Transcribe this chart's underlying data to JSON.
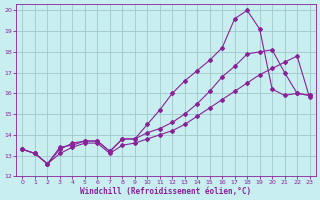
{
  "xlabel": "Windchill (Refroidissement éolien,°C)",
  "bg_color": "#c8eef0",
  "grid_color": "#a0c8cc",
  "line_color": "#882299",
  "spine_color": "#882299",
  "xlim": [
    -0.5,
    23.5
  ],
  "ylim": [
    12,
    20.3
  ],
  "xticks": [
    0,
    1,
    2,
    3,
    4,
    5,
    6,
    7,
    8,
    9,
    10,
    11,
    12,
    13,
    14,
    15,
    16,
    17,
    18,
    19,
    20,
    21,
    22,
    23
  ],
  "yticks": [
    12,
    13,
    14,
    15,
    16,
    17,
    18,
    19,
    20
  ],
  "line1_x": [
    0,
    1,
    2,
    3,
    4,
    5,
    6,
    7,
    8,
    9,
    10,
    11,
    12,
    13,
    14,
    15,
    16,
    17,
    18,
    19,
    20,
    21,
    22,
    23
  ],
  "line1_y": [
    13.3,
    13.1,
    12.6,
    13.4,
    13.5,
    13.7,
    13.7,
    13.2,
    13.8,
    13.8,
    14.1,
    14.3,
    14.6,
    15.0,
    15.5,
    16.1,
    16.8,
    17.3,
    17.9,
    18.0,
    18.1,
    17.0,
    16.0,
    15.9
  ],
  "line2_x": [
    0,
    1,
    2,
    3,
    4,
    5,
    6,
    7,
    8,
    9,
    10,
    11,
    12,
    13,
    14,
    15,
    16,
    17,
    18,
    19,
    20,
    21,
    22,
    23
  ],
  "line2_y": [
    13.3,
    13.1,
    12.6,
    13.3,
    13.6,
    13.7,
    13.7,
    13.2,
    13.8,
    13.8,
    14.5,
    15.2,
    16.0,
    16.6,
    17.1,
    17.6,
    18.2,
    19.6,
    20.0,
    19.1,
    16.2,
    15.9,
    16.0,
    15.9
  ],
  "line3_x": [
    0,
    1,
    2,
    3,
    4,
    5,
    6,
    7,
    8,
    9,
    10,
    11,
    12,
    13,
    14,
    15,
    16,
    17,
    18,
    19,
    20,
    21,
    22,
    23
  ],
  "line3_y": [
    13.3,
    13.1,
    12.6,
    13.1,
    13.4,
    13.6,
    13.6,
    13.1,
    13.5,
    13.6,
    13.8,
    14.0,
    14.2,
    14.5,
    14.9,
    15.3,
    15.7,
    16.1,
    16.5,
    16.9,
    17.2,
    17.5,
    17.8,
    15.8
  ]
}
